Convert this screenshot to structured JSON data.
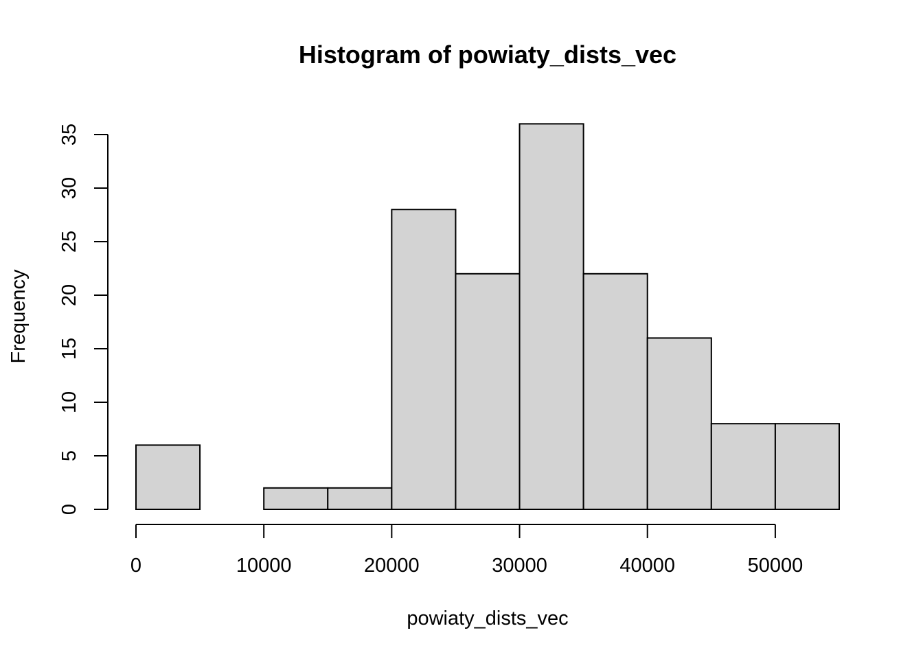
{
  "chart_data": {
    "type": "bar",
    "title": "Histogram of powiaty_dists_vec",
    "xlabel": "powiaty_dists_vec",
    "ylabel": "Frequency",
    "bins": [
      {
        "start": 0,
        "end": 5000,
        "count": 6
      },
      {
        "start": 5000,
        "end": 10000,
        "count": 0
      },
      {
        "start": 10000,
        "end": 15000,
        "count": 2
      },
      {
        "start": 15000,
        "end": 20000,
        "count": 2
      },
      {
        "start": 20000,
        "end": 25000,
        "count": 28
      },
      {
        "start": 25000,
        "end": 30000,
        "count": 22
      },
      {
        "start": 30000,
        "end": 35000,
        "count": 36
      },
      {
        "start": 35000,
        "end": 40000,
        "count": 22
      },
      {
        "start": 40000,
        "end": 45000,
        "count": 16
      },
      {
        "start": 45000,
        "end": 50000,
        "count": 8
      },
      {
        "start": 50000,
        "end": 55000,
        "count": 8
      }
    ],
    "xticks": [
      0,
      10000,
      20000,
      30000,
      40000,
      50000
    ],
    "yticks": [
      0,
      5,
      10,
      15,
      20,
      25,
      30,
      35
    ],
    "xlim": [
      0,
      55000
    ],
    "ylim": [
      0,
      36
    ],
    "bar_color": "#d3d3d3",
    "grid": false
  }
}
